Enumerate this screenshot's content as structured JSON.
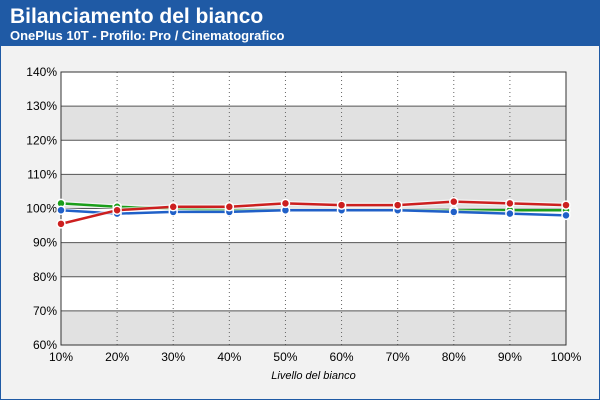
{
  "header": {
    "title": "Bilanciamento del bianco",
    "subtitle": "OnePlus 10T - Profilo: Pro / Cinematografico"
  },
  "chart_data": {
    "type": "line",
    "title": "Bilanciamento del bianco",
    "subtitle": "OnePlus 10T - Profilo: Pro / Cinematografico",
    "xlabel": "Livello del bianco",
    "ylabel": "",
    "x": [
      10,
      20,
      30,
      40,
      50,
      60,
      70,
      80,
      90,
      100
    ],
    "x_ticks": [
      "10%",
      "20%",
      "30%",
      "40%",
      "50%",
      "60%",
      "70%",
      "80%",
      "90%",
      "100%"
    ],
    "y_ticks": [
      "60%",
      "70%",
      "80%",
      "90%",
      "100%",
      "110%",
      "120%",
      "130%",
      "140%"
    ],
    "ylim": [
      60,
      140
    ],
    "grid": true,
    "series": [
      {
        "name": "",
        "color": "#1a9e1a",
        "values": [
          101.5,
          100.5,
          100,
          99.5,
          99.5,
          99.5,
          99.5,
          99.5,
          99.5,
          99.5
        ]
      },
      {
        "name": "",
        "color": "#2060c8",
        "values": [
          99.5,
          98.5,
          99,
          99,
          99.5,
          99.5,
          99.5,
          99,
          98.5,
          98
        ]
      },
      {
        "name": "",
        "color": "#cc1f1f",
        "values": [
          95.5,
          99.5,
          100.5,
          100.5,
          101.5,
          101,
          101,
          102,
          101.5,
          101
        ]
      }
    ]
  }
}
